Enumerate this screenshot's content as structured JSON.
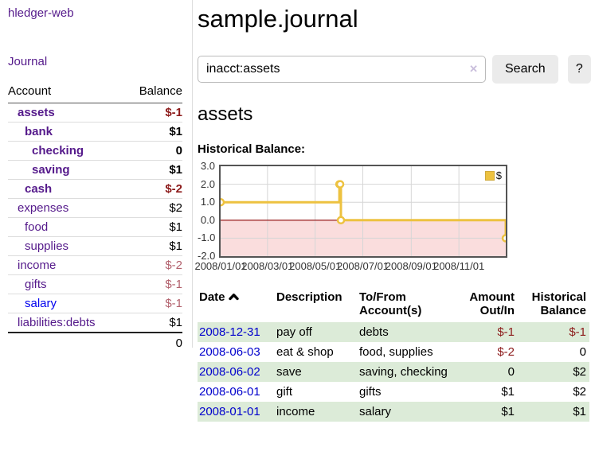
{
  "app": {
    "brand": "hledger-web"
  },
  "sidebar": {
    "journal_link": "Journal",
    "accounts": {
      "col_account": "Account",
      "col_balance": "Balance",
      "rows": [
        {
          "name": "assets",
          "balance": "$-1"
        },
        {
          "name": "bank",
          "balance": "$1"
        },
        {
          "name": "checking",
          "balance": "0"
        },
        {
          "name": "saving",
          "balance": "$1"
        },
        {
          "name": "cash",
          "balance": "$-2"
        },
        {
          "name": "expenses",
          "balance": "$2"
        },
        {
          "name": "food",
          "balance": "$1"
        },
        {
          "name": "supplies",
          "balance": "$1"
        },
        {
          "name": "income",
          "balance": "$-2"
        },
        {
          "name": "gifts",
          "balance": "$-1"
        },
        {
          "name": "salary",
          "balance": "$-1"
        },
        {
          "name": "liabilities:debts",
          "balance": "$1"
        }
      ],
      "total": "0"
    }
  },
  "main": {
    "title": "sample.journal",
    "search": {
      "value": "inacct:assets",
      "clear_icon": "✕",
      "search_button": "Search",
      "help_button": "?"
    },
    "account_heading": "assets",
    "chart_heading": "Historical Balance:"
  },
  "chart_data": {
    "type": "line",
    "title": "Historical Balance",
    "series": [
      {
        "name": "$",
        "style": "step-after",
        "color": "#edc240",
        "points": [
          [
            "2008-01-01",
            1
          ],
          [
            "2008-06-01",
            2
          ],
          [
            "2008-06-02",
            2
          ],
          [
            "2008-06-03",
            0
          ],
          [
            "2008-12-31",
            -1
          ]
        ]
      }
    ],
    "x_range": [
      "2008-01-01",
      "2008-12-31"
    ],
    "x_ticks": [
      "2008/01/01",
      "2008/03/01",
      "2008/05/01",
      "2008/07/01",
      "2008/09/01",
      "2008/11/01"
    ],
    "y_ticks": [
      3.0,
      2.0,
      1.0,
      0.0,
      -1.0,
      -2.0
    ],
    "ylim": [
      -2.0,
      3.0
    ],
    "grid": true,
    "legend": {
      "position": "top-right",
      "label": "$"
    },
    "colors": {
      "negative_region": "#fadddd",
      "zero_line": "#8b0000",
      "grid": "#d6d6d6",
      "border": "#545454",
      "marker_fill": "#ffffff",
      "swatch_border": "#cfa93a"
    }
  },
  "register": {
    "headers": {
      "date": "Date",
      "sort_icon": "chevron-up",
      "description": "Description",
      "account_line1": "To/From",
      "account_line2": "Account(s)",
      "amount_line1": "Amount",
      "amount_line2": "Out/In",
      "balance_line1": "Historical",
      "balance_line2": "Balance"
    },
    "rows": [
      {
        "date": "2008-12-31",
        "description": "pay off",
        "accounts": "debts",
        "amount": "$-1",
        "balance": "$-1"
      },
      {
        "date": "2008-06-03",
        "description": "eat & shop",
        "accounts": "food, supplies",
        "amount": "$-2",
        "balance": "0"
      },
      {
        "date": "2008-06-02",
        "description": "save",
        "accounts": "saving, checking",
        "amount": "0",
        "balance": "$2"
      },
      {
        "date": "2008-06-01",
        "description": "gift",
        "accounts": "gifts",
        "amount": "$1",
        "balance": "$2"
      },
      {
        "date": "2008-01-01",
        "description": "income",
        "accounts": "salary",
        "amount": "$1",
        "balance": "$1"
      }
    ]
  }
}
